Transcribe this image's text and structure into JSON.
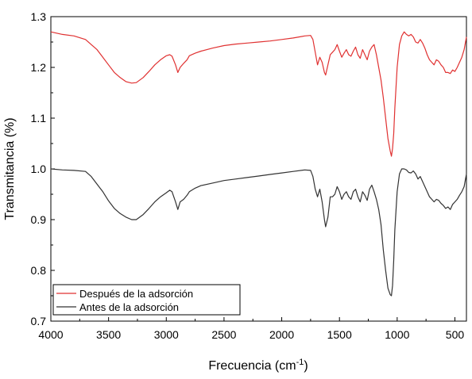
{
  "chart_data": {
    "type": "line",
    "xlabel": "Frecuencia (cm",
    "xlabel_sup": "-1",
    "xlabel_end": ")",
    "ylabel": "Transmitancia (%)",
    "xlim": [
      4000,
      400
    ],
    "ylim": [
      0.7,
      1.3
    ],
    "x_ticks": [
      4000,
      3500,
      3000,
      2500,
      2000,
      1500,
      1000,
      500
    ],
    "y_ticks": [
      0.7,
      0.8,
      0.9,
      1.0,
      1.1,
      1.2,
      1.3
    ],
    "y_tick_labels": [
      "0.7",
      "0.8",
      "0.9",
      "1.0",
      "1.1",
      "1.2",
      "1.3"
    ],
    "grid": false,
    "legend_position": "bottom-left",
    "series": [
      {
        "name": "Después de la adsorción",
        "color": "#e03131",
        "x": [
          4000,
          3900,
          3800,
          3700,
          3650,
          3600,
          3550,
          3500,
          3450,
          3400,
          3350,
          3300,
          3260,
          3200,
          3150,
          3100,
          3050,
          3000,
          2970,
          2950,
          2920,
          2900,
          2880,
          2850,
          2820,
          2800,
          2750,
          2700,
          2600,
          2500,
          2400,
          2300,
          2200,
          2100,
          2000,
          1900,
          1800,
          1750,
          1730,
          1710,
          1690,
          1670,
          1650,
          1630,
          1620,
          1600,
          1580,
          1560,
          1540,
          1520,
          1500,
          1480,
          1460,
          1440,
          1420,
          1400,
          1380,
          1360,
          1340,
          1320,
          1300,
          1280,
          1260,
          1240,
          1220,
          1200,
          1180,
          1160,
          1140,
          1120,
          1100,
          1080,
          1060,
          1050,
          1040,
          1030,
          1020,
          1000,
          980,
          960,
          940,
          920,
          900,
          880,
          860,
          840,
          820,
          800,
          780,
          760,
          740,
          720,
          700,
          680,
          660,
          640,
          620,
          600,
          580,
          560,
          540,
          520,
          500,
          480,
          460,
          440,
          420,
          400
        ],
        "y": [
          1.27,
          1.265,
          1.262,
          1.255,
          1.245,
          1.235,
          1.22,
          1.205,
          1.19,
          1.18,
          1.172,
          1.169,
          1.17,
          1.18,
          1.192,
          1.205,
          1.215,
          1.223,
          1.225,
          1.222,
          1.205,
          1.19,
          1.2,
          1.208,
          1.215,
          1.223,
          1.228,
          1.232,
          1.238,
          1.243,
          1.246,
          1.248,
          1.25,
          1.252,
          1.255,
          1.258,
          1.262,
          1.263,
          1.255,
          1.23,
          1.205,
          1.22,
          1.21,
          1.19,
          1.185,
          1.205,
          1.225,
          1.23,
          1.235,
          1.245,
          1.232,
          1.22,
          1.228,
          1.235,
          1.225,
          1.222,
          1.232,
          1.24,
          1.225,
          1.218,
          1.235,
          1.225,
          1.215,
          1.232,
          1.24,
          1.245,
          1.225,
          1.2,
          1.175,
          1.14,
          1.1,
          1.06,
          1.035,
          1.025,
          1.04,
          1.07,
          1.12,
          1.2,
          1.245,
          1.262,
          1.27,
          1.265,
          1.262,
          1.265,
          1.26,
          1.25,
          1.248,
          1.255,
          1.248,
          1.238,
          1.225,
          1.215,
          1.21,
          1.205,
          1.215,
          1.212,
          1.205,
          1.2,
          1.19,
          1.19,
          1.188,
          1.195,
          1.192,
          1.2,
          1.21,
          1.22,
          1.235,
          1.26
        ]
      },
      {
        "name": "Antes de la adsorción",
        "color": "#333333",
        "x": [
          4000,
          3900,
          3800,
          3700,
          3650,
          3600,
          3550,
          3500,
          3450,
          3400,
          3350,
          3300,
          3260,
          3200,
          3150,
          3100,
          3050,
          3000,
          2970,
          2950,
          2920,
          2900,
          2880,
          2850,
          2820,
          2800,
          2750,
          2700,
          2600,
          2500,
          2400,
          2300,
          2200,
          2100,
          2000,
          1900,
          1800,
          1750,
          1730,
          1710,
          1690,
          1670,
          1650,
          1630,
          1620,
          1600,
          1580,
          1560,
          1540,
          1520,
          1500,
          1480,
          1460,
          1440,
          1420,
          1400,
          1380,
          1360,
          1340,
          1320,
          1300,
          1280,
          1260,
          1240,
          1220,
          1200,
          1180,
          1160,
          1140,
          1120,
          1100,
          1080,
          1060,
          1050,
          1040,
          1030,
          1020,
          1000,
          980,
          960,
          940,
          920,
          900,
          880,
          860,
          840,
          820,
          800,
          780,
          760,
          740,
          720,
          700,
          680,
          660,
          640,
          620,
          600,
          580,
          560,
          540,
          520,
          500,
          480,
          460,
          440,
          420,
          400
        ],
        "y": [
          1.0,
          0.998,
          0.997,
          0.995,
          0.985,
          0.97,
          0.955,
          0.937,
          0.922,
          0.912,
          0.905,
          0.9,
          0.9,
          0.91,
          0.922,
          0.935,
          0.945,
          0.953,
          0.958,
          0.955,
          0.935,
          0.92,
          0.935,
          0.94,
          0.948,
          0.955,
          0.962,
          0.967,
          0.972,
          0.977,
          0.98,
          0.983,
          0.986,
          0.989,
          0.992,
          0.995,
          0.998,
          0.997,
          0.985,
          0.96,
          0.945,
          0.96,
          0.935,
          0.9,
          0.886,
          0.905,
          0.945,
          0.945,
          0.95,
          0.965,
          0.955,
          0.94,
          0.95,
          0.955,
          0.945,
          0.94,
          0.955,
          0.96,
          0.945,
          0.935,
          0.955,
          0.948,
          0.938,
          0.96,
          0.968,
          0.955,
          0.94,
          0.92,
          0.89,
          0.84,
          0.8,
          0.765,
          0.752,
          0.75,
          0.77,
          0.82,
          0.88,
          0.955,
          0.99,
          1.0,
          1.0,
          0.998,
          0.993,
          0.992,
          0.996,
          0.99,
          0.98,
          0.985,
          0.975,
          0.965,
          0.955,
          0.945,
          0.94,
          0.935,
          0.94,
          0.938,
          0.932,
          0.928,
          0.922,
          0.925,
          0.92,
          0.93,
          0.935,
          0.94,
          0.948,
          0.955,
          0.965,
          0.99
        ]
      }
    ]
  }
}
